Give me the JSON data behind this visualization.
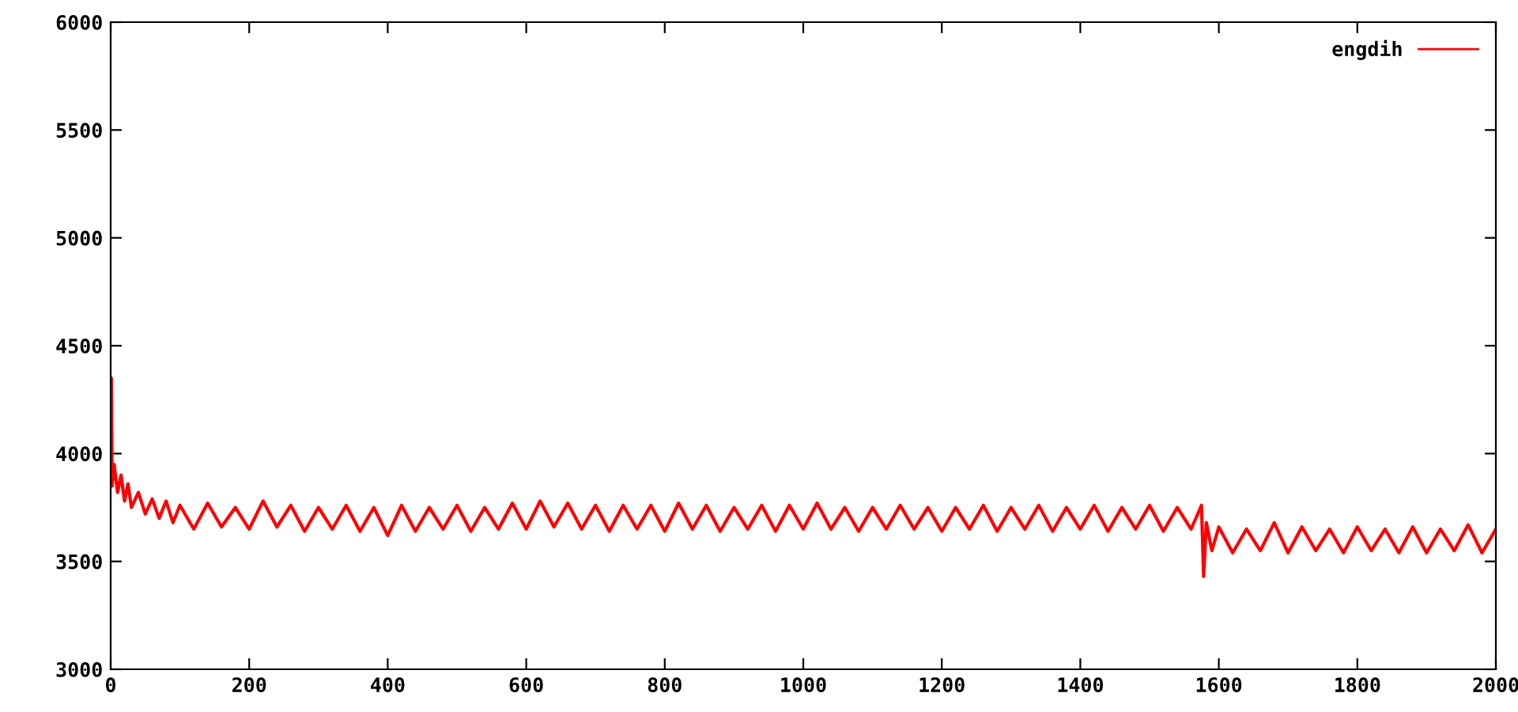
{
  "chart_data": {
    "type": "line",
    "legend": "top right",
    "grid": false,
    "xlim": [
      0,
      2000
    ],
    "xticks": [
      0,
      200,
      400,
      600,
      800,
      1000,
      1200,
      1400,
      1600,
      1800,
      2000
    ],
    "ylim": [
      3000,
      6000
    ],
    "yticks": [
      3000,
      3500,
      4000,
      4500,
      5000,
      5500,
      6000
    ],
    "series": [
      {
        "name": "engdih",
        "color": "#ff0000",
        "x": [
          0,
          1,
          2,
          5,
          10,
          15,
          20,
          25,
          30,
          40,
          50,
          60,
          70,
          80,
          90,
          100,
          120,
          140,
          160,
          180,
          200,
          220,
          240,
          260,
          280,
          300,
          320,
          340,
          360,
          380,
          400,
          420,
          440,
          460,
          480,
          500,
          520,
          540,
          560,
          580,
          600,
          620,
          640,
          660,
          680,
          700,
          720,
          740,
          760,
          780,
          800,
          820,
          840,
          860,
          880,
          900,
          920,
          940,
          960,
          980,
          1000,
          1020,
          1040,
          1060,
          1080,
          1100,
          1120,
          1140,
          1160,
          1180,
          1200,
          1220,
          1240,
          1260,
          1280,
          1300,
          1320,
          1340,
          1360,
          1380,
          1400,
          1420,
          1440,
          1460,
          1480,
          1500,
          1520,
          1540,
          1560,
          1575,
          1578,
          1582,
          1590,
          1600,
          1620,
          1640,
          1660,
          1680,
          1700,
          1720,
          1740,
          1760,
          1780,
          1800,
          1820,
          1840,
          1860,
          1880,
          1900,
          1920,
          1940,
          1960,
          1980,
          2000
        ],
        "values": [
          3900,
          4350,
          3850,
          3950,
          3820,
          3900,
          3780,
          3860,
          3750,
          3820,
          3720,
          3790,
          3700,
          3780,
          3680,
          3760,
          3650,
          3770,
          3660,
          3750,
          3650,
          3780,
          3660,
          3760,
          3640,
          3750,
          3650,
          3760,
          3640,
          3750,
          3620,
          3760,
          3640,
          3750,
          3650,
          3760,
          3640,
          3750,
          3650,
          3770,
          3650,
          3780,
          3660,
          3770,
          3650,
          3760,
          3640,
          3760,
          3650,
          3760,
          3640,
          3770,
          3650,
          3760,
          3640,
          3750,
          3650,
          3760,
          3640,
          3760,
          3650,
          3770,
          3650,
          3750,
          3640,
          3750,
          3650,
          3760,
          3650,
          3750,
          3640,
          3750,
          3650,
          3760,
          3640,
          3750,
          3650,
          3760,
          3640,
          3750,
          3650,
          3760,
          3640,
          3750,
          3650,
          3760,
          3640,
          3750,
          3650,
          3760,
          3430,
          3680,
          3550,
          3660,
          3540,
          3650,
          3550,
          3680,
          3540,
          3660,
          3550,
          3650,
          3540,
          3660,
          3550,
          3650,
          3540,
          3660,
          3540,
          3650,
          3550,
          3670,
          3540,
          3650
        ]
      }
    ]
  }
}
